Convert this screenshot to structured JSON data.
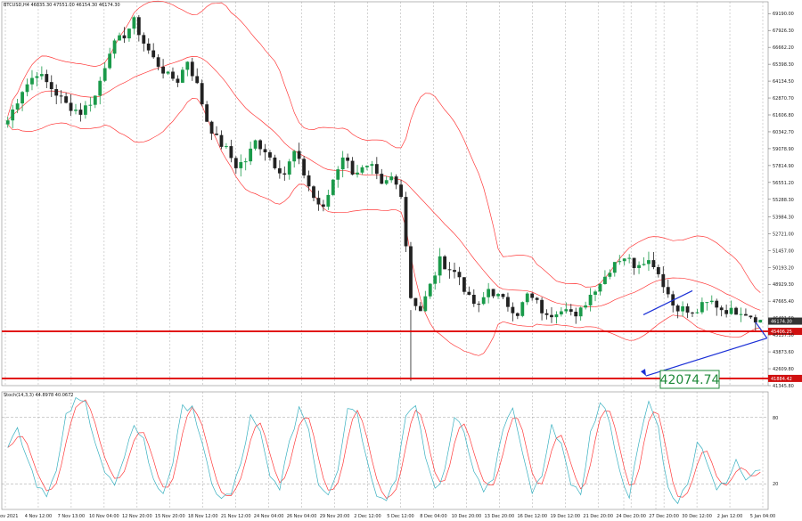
{
  "symbol_header": "BTCUSD,H4  46835.30 47551.00 46154.30 46174.30",
  "stoch_header": "Stoch(14,3,3) 44.8978 40.0672",
  "target_label": "42074.74",
  "colors": {
    "candle_up": "#1a9a4a",
    "candle_down": "#222222",
    "bands": "#ff3a3a",
    "hline": "#e00000",
    "trend": "#1a2fd6",
    "stoch_main": "#38b0c0",
    "stoch_signal": "#ff3a3a",
    "target": "#1f8a3a",
    "price_tag": "#d01010"
  },
  "chart_data": {
    "type": "candlestick",
    "price_axis_labels": [
      "69190.00",
      "67926.30",
      "66662.20",
      "65398.30",
      "64134.50",
      "62870.70",
      "61606.80",
      "60342.70",
      "59078.90",
      "57814.90",
      "56551.20",
      "55288.30",
      "53984.30",
      "52721.00",
      "51457.00",
      "50193.20",
      "48929.30",
      "47665.40",
      "46401.60",
      "45137.50",
      "43873.60",
      "42609.80",
      "41345.80"
    ],
    "price_range": [
      41345.8,
      69805.0
    ],
    "time_axis_labels": [
      "1 Nov 2021",
      "4 Nov 12:00",
      "7 Nov 13:00",
      "10 Nov 04:00",
      "12 Nov 20:00",
      "15 Nov 20:00",
      "18 Nov 12:00",
      "21 Nov 12:00",
      "24 Nov 04:00",
      "26 Nov 04:00",
      "29 Nov 20:00",
      "2 Dec 12:00",
      "5 Dec 12:00",
      "8 Dec 04:00",
      "10 Dec 20:00",
      "13 Dec 20:00",
      "16 Dec 12:00",
      "19 Dec 12:00",
      "21 Dec 20:00",
      "24 Dec 20:00",
      "27 Dec 20:00",
      "30 Dec 12:00",
      "2 Jan 12:00",
      "5 Jan 04:00"
    ],
    "key_levels": [
      {
        "price": 45406.25,
        "label": "45406.25"
      },
      {
        "price": 41884.42,
        "label": "41884.42"
      }
    ],
    "current_price": {
      "price": 46174.3,
      "label": "46174.30"
    },
    "projection_target": 42074.74,
    "close_path": [
      [
        0,
        61200
      ],
      [
        3,
        63500
      ],
      [
        6,
        64800
      ],
      [
        9,
        63600
      ],
      [
        12,
        62400
      ],
      [
        15,
        61800
      ],
      [
        18,
        63000
      ],
      [
        21,
        66500
      ],
      [
        24,
        67600
      ],
      [
        26,
        68600
      ],
      [
        28,
        67000
      ],
      [
        30,
        65800
      ],
      [
        33,
        64500
      ],
      [
        35,
        64200
      ],
      [
        37,
        65700
      ],
      [
        39,
        63800
      ],
      [
        41,
        61200
      ],
      [
        43,
        59800
      ],
      [
        45,
        59000
      ],
      [
        47,
        57800
      ],
      [
        49,
        58200
      ],
      [
        51,
        59600
      ],
      [
        53,
        59000
      ],
      [
        55,
        57900
      ],
      [
        57,
        57200
      ],
      [
        59,
        58800
      ],
      [
        61,
        57200
      ],
      [
        63,
        55400
      ],
      [
        65,
        54500
      ],
      [
        67,
        56800
      ],
      [
        69,
        58600
      ],
      [
        71,
        57400
      ],
      [
        73,
        57500
      ],
      [
        75,
        57600
      ],
      [
        77,
        56200
      ],
      [
        79,
        56900
      ],
      [
        81,
        55800
      ],
      [
        83,
        48000
      ],
      [
        85,
        47000
      ],
      [
        87,
        48800
      ],
      [
        89,
        50700
      ],
      [
        91,
        50100
      ],
      [
        93,
        49500
      ],
      [
        95,
        47800
      ],
      [
        97,
        47200
      ],
      [
        99,
        48600
      ],
      [
        101,
        48000
      ],
      [
        103,
        47400
      ],
      [
        105,
        46800
      ],
      [
        107,
        48100
      ],
      [
        109,
        47500
      ],
      [
        111,
        46400
      ],
      [
        113,
        47000
      ],
      [
        115,
        47400
      ],
      [
        117,
        46300
      ],
      [
        119,
        47600
      ],
      [
        121,
        48700
      ],
      [
        123,
        49500
      ],
      [
        125,
        50700
      ],
      [
        127,
        51000
      ],
      [
        129,
        50400
      ],
      [
        131,
        50800
      ],
      [
        133,
        50500
      ],
      [
        135,
        49000
      ],
      [
        137,
        47400
      ],
      [
        139,
        47100
      ],
      [
        141,
        46600
      ],
      [
        143,
        47300
      ],
      [
        145,
        47600
      ],
      [
        147,
        47100
      ],
      [
        149,
        46900
      ],
      [
        151,
        47000
      ],
      [
        153,
        46600
      ],
      [
        155,
        46200
      ]
    ],
    "stochastic": {
      "range": [
        0,
        100
      ],
      "levels": [
        80,
        20
      ],
      "k_path": [
        [
          0,
          55
        ],
        [
          2,
          70
        ],
        [
          4,
          45
        ],
        [
          6,
          20
        ],
        [
          8,
          12
        ],
        [
          10,
          30
        ],
        [
          12,
          80
        ],
        [
          14,
          95
        ],
        [
          16,
          93
        ],
        [
          18,
          60
        ],
        [
          20,
          30
        ],
        [
          22,
          18
        ],
        [
          24,
          40
        ],
        [
          26,
          75
        ],
        [
          28,
          60
        ],
        [
          30,
          22
        ],
        [
          32,
          12
        ],
        [
          34,
          40
        ],
        [
          36,
          88
        ],
        [
          38,
          92
        ],
        [
          40,
          55
        ],
        [
          42,
          18
        ],
        [
          44,
          8
        ],
        [
          46,
          10
        ],
        [
          48,
          38
        ],
        [
          50,
          80
        ],
        [
          52,
          65
        ],
        [
          54,
          25
        ],
        [
          56,
          18
        ],
        [
          58,
          55
        ],
        [
          60,
          90
        ],
        [
          62,
          70
        ],
        [
          64,
          20
        ],
        [
          66,
          12
        ],
        [
          68,
          35
        ],
        [
          70,
          90
        ],
        [
          72,
          85
        ],
        [
          74,
          40
        ],
        [
          76,
          12
        ],
        [
          78,
          8
        ],
        [
          80,
          25
        ],
        [
          82,
          85
        ],
        [
          84,
          88
        ],
        [
          86,
          45
        ],
        [
          88,
          15
        ],
        [
          90,
          30
        ],
        [
          92,
          82
        ],
        [
          94,
          70
        ],
        [
          96,
          30
        ],
        [
          98,
          15
        ],
        [
          100,
          22
        ],
        [
          102,
          70
        ],
        [
          104,
          88
        ],
        [
          106,
          45
        ],
        [
          108,
          12
        ],
        [
          110,
          25
        ],
        [
          112,
          70
        ],
        [
          114,
          60
        ],
        [
          116,
          15
        ],
        [
          118,
          12
        ],
        [
          120,
          65
        ],
        [
          122,
          92
        ],
        [
          124,
          78
        ],
        [
          126,
          30
        ],
        [
          128,
          10
        ],
        [
          130,
          55
        ],
        [
          132,
          95
        ],
        [
          134,
          70
        ],
        [
          136,
          15
        ],
        [
          138,
          5
        ],
        [
          140,
          18
        ],
        [
          142,
          60
        ],
        [
          144,
          42
        ],
        [
          146,
          15
        ],
        [
          148,
          20
        ],
        [
          150,
          40
        ],
        [
          152,
          25
        ],
        [
          154,
          35
        ]
      ]
    }
  }
}
